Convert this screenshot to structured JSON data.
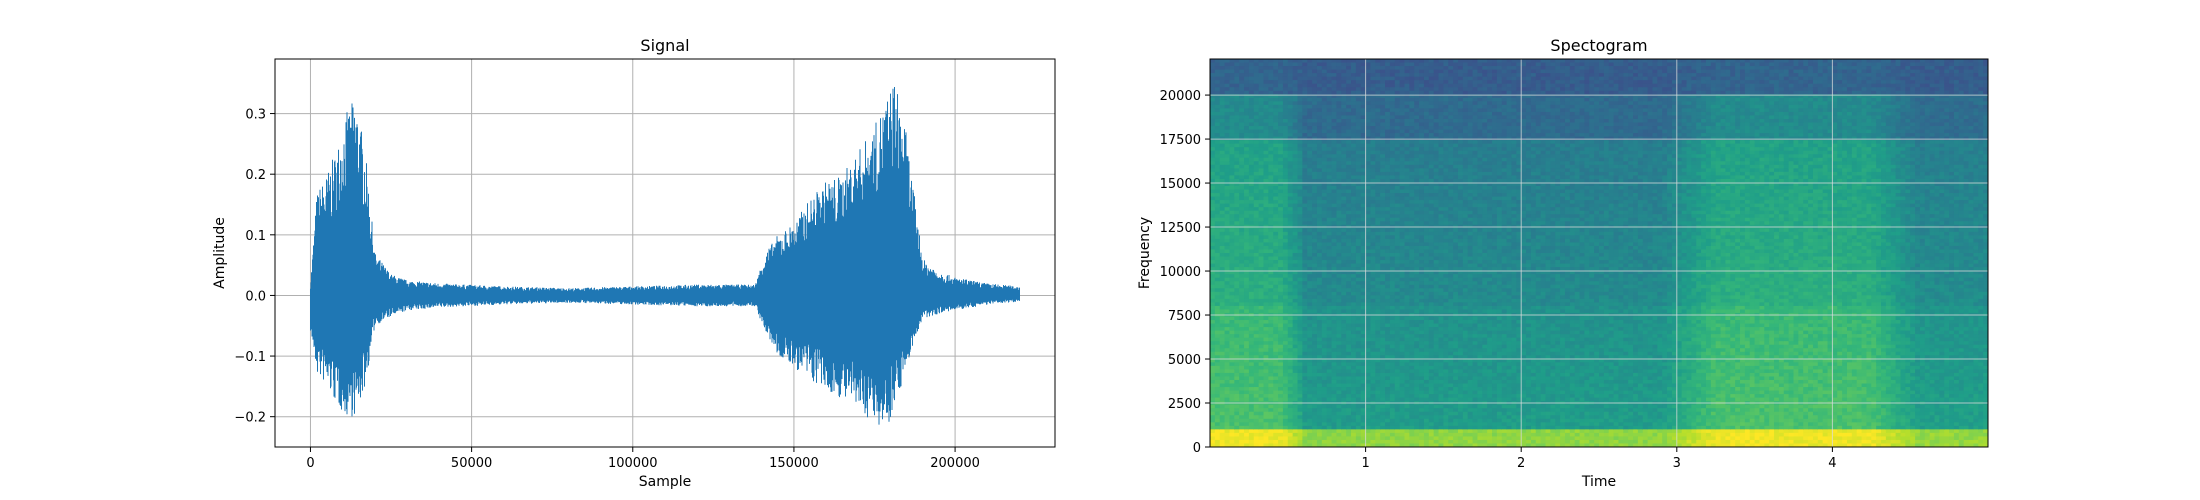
{
  "chart_data": [
    {
      "type": "line",
      "title": "Signal",
      "xlabel": "Sample",
      "ylabel": "Amplitude",
      "xlim": [
        -11000,
        231000
      ],
      "ylim": [
        -0.25,
        0.39
      ],
      "xticks": [
        0,
        50000,
        100000,
        150000,
        200000
      ],
      "xtick_labels": [
        "0",
        "50000",
        "100000",
        "150000",
        "200000"
      ],
      "yticks": [
        -0.2,
        -0.1,
        0.0,
        0.1,
        0.2,
        0.3
      ],
      "ytick_labels": [
        "−0.2",
        "−0.1",
        "0.0",
        "0.1",
        "0.2",
        "0.3"
      ],
      "grid": true,
      "color": "#1f77b4",
      "envelope": {
        "x": [
          0,
          2000,
          5000,
          8000,
          11000,
          14000,
          17000,
          20000,
          25000,
          30000,
          40000,
          60000,
          80000,
          100000,
          120000,
          138000,
          141000,
          145000,
          150000,
          155000,
          160000,
          165000,
          170000,
          175000,
          179000,
          181000,
          184000,
          187000,
          190000,
          195000,
          200000,
          210000,
          220000
        ],
        "max": [
          0.02,
          0.17,
          0.2,
          0.24,
          0.3,
          0.33,
          0.24,
          0.07,
          0.035,
          0.025,
          0.02,
          0.015,
          0.012,
          0.015,
          0.018,
          0.018,
          0.07,
          0.1,
          0.12,
          0.16,
          0.19,
          0.2,
          0.24,
          0.28,
          0.33,
          0.36,
          0.3,
          0.18,
          0.06,
          0.04,
          0.03,
          0.02,
          0.015
        ],
        "min": [
          -0.06,
          -0.13,
          -0.15,
          -0.18,
          -0.2,
          -0.2,
          -0.15,
          -0.05,
          -0.035,
          -0.025,
          -0.02,
          -0.015,
          -0.012,
          -0.015,
          -0.018,
          -0.018,
          -0.06,
          -0.1,
          -0.12,
          -0.14,
          -0.16,
          -0.17,
          -0.19,
          -0.21,
          -0.22,
          -0.18,
          -0.14,
          -0.08,
          -0.04,
          -0.03,
          -0.025,
          -0.015,
          -0.01
        ]
      }
    },
    {
      "type": "heatmap",
      "title": "Spectogram",
      "xlabel": "Time",
      "ylabel": "Frequency",
      "xlim": [
        0,
        5
      ],
      "ylim": [
        0,
        22050
      ],
      "xticks": [
        1,
        2,
        3,
        4
      ],
      "xtick_labels": [
        "1",
        "2",
        "3",
        "4"
      ],
      "yticks": [
        0,
        2500,
        5000,
        7500,
        10000,
        12500,
        15000,
        17500,
        20000
      ],
      "ytick_labels": [
        "0",
        "2500",
        "5000",
        "7500",
        "10000",
        "12500",
        "15000",
        "17500",
        "20000"
      ],
      "grid": true,
      "colormap": "viridis"
    }
  ]
}
